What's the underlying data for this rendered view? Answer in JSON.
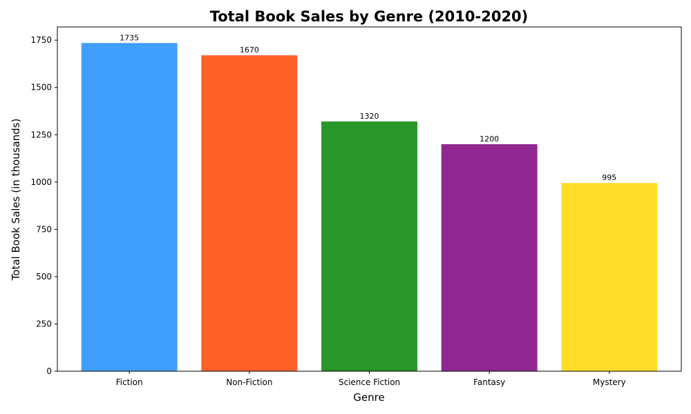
{
  "chart_data": {
    "type": "bar",
    "title": "Total Book Sales by Genre (2010-2020)",
    "xlabel": "Genre",
    "ylabel": "Total Book Sales (in thousands)",
    "categories": [
      "Fiction",
      "Non-Fiction",
      "Science Fiction",
      "Fantasy",
      "Mystery"
    ],
    "values": [
      1735,
      1670,
      1320,
      1200,
      995
    ],
    "data_labels": [
      "1735",
      "1670",
      "1320",
      "1200",
      "995"
    ],
    "colors": [
      "#409EFF",
      "#FF6229",
      "#289628",
      "#912891",
      "#FFDC28"
    ],
    "ylim": [
      0,
      1820
    ],
    "yticks": [
      0,
      250,
      500,
      750,
      1000,
      1250,
      1500,
      1750
    ],
    "grid": false,
    "legend": "none"
  }
}
